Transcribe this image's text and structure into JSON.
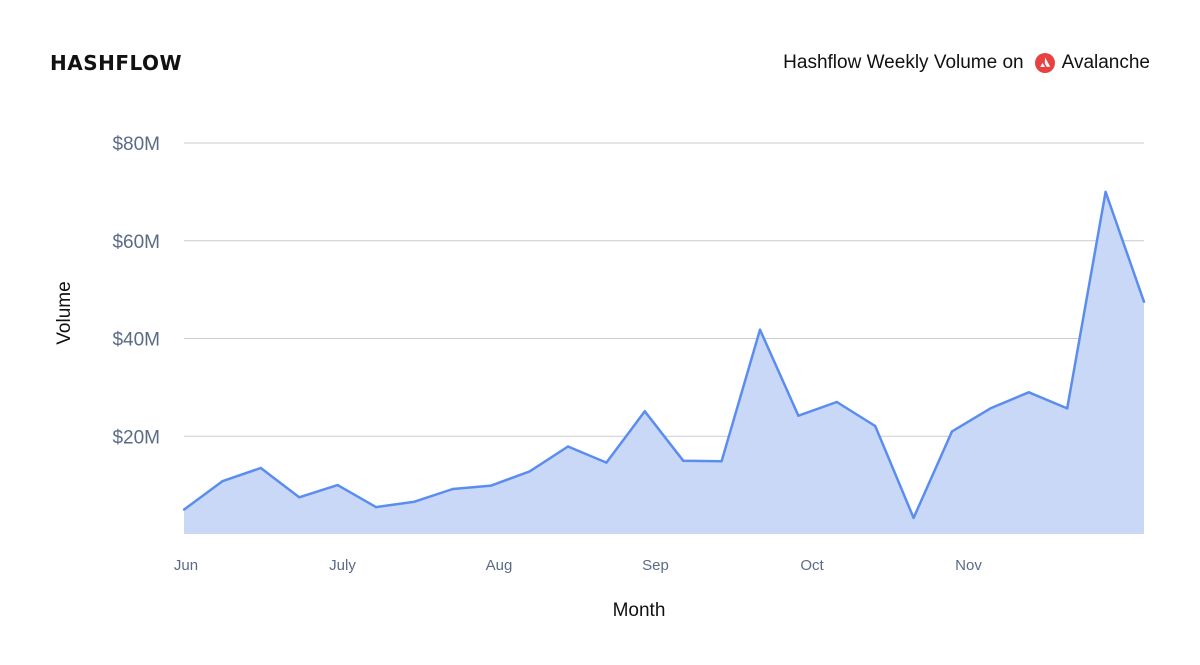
{
  "brand": {
    "name": "HASHFLOW"
  },
  "header": {
    "title_prefix": "Hashflow Weekly Volume on",
    "network": "Avalanche",
    "network_icon": "avalanche-logo-icon",
    "network_color": "#e84142"
  },
  "colors": {
    "line": "#5b8def",
    "fill": "#c9d8f7",
    "grid": "#c9ccd2",
    "tick_text": "#5b6b86"
  },
  "chart_data": {
    "type": "area",
    "xlabel": "Month",
    "ylabel": "Volume",
    "ylim": [
      0,
      80000000
    ],
    "y_ticks": [
      {
        "value": 20000000,
        "label": "$20M"
      },
      {
        "value": 40000000,
        "label": "$40M"
      },
      {
        "value": 60000000,
        "label": "$60M"
      },
      {
        "value": 80000000,
        "label": "$80M"
      }
    ],
    "x_ticks": [
      "Jun",
      "July",
      "Aug",
      "Sep",
      "Oct",
      "Nov"
    ],
    "grid": true,
    "series": [
      {
        "values": [
          5000000,
          10800000,
          13500000,
          7500000,
          10000000,
          5500000,
          6600000,
          9200000,
          9900000,
          12800000,
          17900000,
          14600000,
          25100000,
          15000000,
          14900000,
          41800000,
          24200000,
          27000000,
          22100000,
          3300000,
          21000000,
          25700000,
          29000000,
          25700000,
          70000000,
          47500000
        ]
      }
    ]
  }
}
